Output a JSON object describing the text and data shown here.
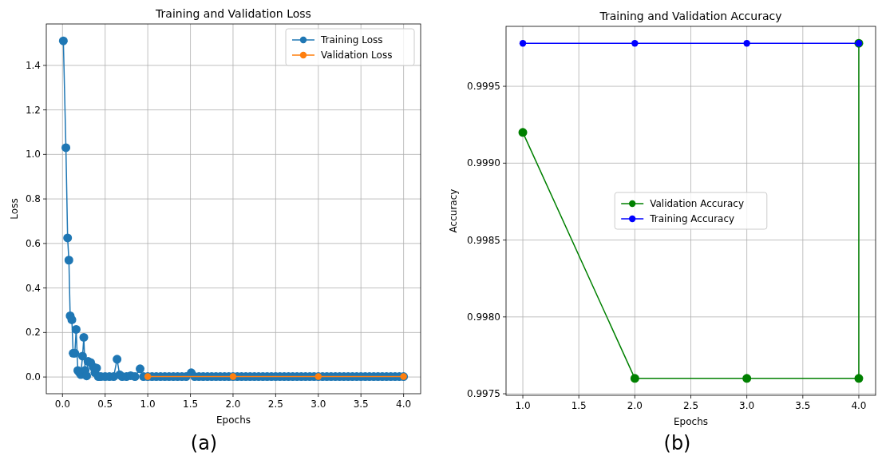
{
  "chart_data": [
    {
      "type": "line",
      "title": "Training and Validation Loss",
      "xlabel": "Epochs",
      "ylabel": "Loss",
      "annotations": [
        "(a)"
      ],
      "xlim": [
        -0.19,
        4.2
      ],
      "ylim": [
        -0.075,
        1.586
      ],
      "xticks": [
        {
          "value": 0,
          "label": "0.0"
        },
        {
          "value": 0.5,
          "label": "0.5"
        },
        {
          "value": 1,
          "label": "1.0"
        },
        {
          "value": 1.5,
          "label": "1.5"
        },
        {
          "value": 2,
          "label": "2.0"
        },
        {
          "value": 2.5,
          "label": "2.5"
        },
        {
          "value": 3,
          "label": "3.0"
        },
        {
          "value": 3.5,
          "label": "3.5"
        },
        {
          "value": 4,
          "label": "4.0"
        }
      ],
      "yticks": [
        {
          "value": 0,
          "label": "0.0"
        },
        {
          "value": 0.2,
          "label": "0.2"
        },
        {
          "value": 0.4,
          "label": "0.4"
        },
        {
          "value": 0.6,
          "label": "0.6"
        },
        {
          "value": 0.8,
          "label": "0.8"
        },
        {
          "value": 1,
          "label": "1.0"
        },
        {
          "value": 1.2,
          "label": "1.2"
        },
        {
          "value": 1.4,
          "label": "1.4"
        }
      ],
      "grid": true,
      "legend": "top right",
      "marker": "circle",
      "line_style": "solid",
      "series": [
        {
          "name": "Training Loss",
          "color": "#1f77b4",
          "x": [
            0.01,
            0.04,
            0.06,
            0.075,
            0.09,
            0.11,
            0.125,
            0.145,
            0.16,
            0.18,
            0.2,
            0.215,
            0.235,
            0.25,
            0.265,
            0.283,
            0.3,
            0.33,
            0.36,
            0.38,
            0.4,
            0.42,
            0.45,
            0.5,
            0.55,
            0.6,
            0.64,
            0.67,
            0.7,
            0.75,
            0.8,
            0.85,
            0.91,
            0.95,
            1.0,
            1.05,
            1.1,
            1.15,
            1.2,
            1.25,
            1.3,
            1.35,
            1.4,
            1.45,
            1.51,
            1.55,
            1.6,
            1.65,
            1.7,
            1.75,
            1.8,
            1.85,
            1.9,
            1.95,
            2.0,
            2.05,
            2.1,
            2.15,
            2.2,
            2.25,
            2.3,
            2.35,
            2.4,
            2.45,
            2.5,
            2.55,
            2.6,
            2.65,
            2.7,
            2.75,
            2.8,
            2.85,
            2.9,
            2.95,
            3.0,
            3.05,
            3.1,
            3.15,
            3.2,
            3.25,
            3.3,
            3.35,
            3.4,
            3.45,
            3.5,
            3.55,
            3.6,
            3.65,
            3.7,
            3.75,
            3.8,
            3.85,
            3.9,
            3.95,
            4.0
          ],
          "values": [
            1.51,
            1.03,
            0.625,
            0.525,
            0.275,
            0.257,
            0.107,
            0.107,
            0.214,
            0.029,
            0.02,
            0.011,
            0.094,
            0.178,
            0.03,
            0.005,
            0.07,
            0.065,
            0.046,
            0.02,
            0.04,
            0.002,
            0.002,
            0.002,
            0.002,
            0.002,
            0.08,
            0.01,
            0.002,
            0.002,
            0.006,
            0.002,
            0.037,
            0.002,
            0.002,
            0.002,
            0.002,
            0.002,
            0.002,
            0.002,
            0.002,
            0.002,
            0.002,
            0.002,
            0.019,
            0.002,
            0.002,
            0.002,
            0.002,
            0.002,
            0.002,
            0.002,
            0.002,
            0.002,
            0.002,
            0.002,
            0.002,
            0.002,
            0.002,
            0.002,
            0.002,
            0.002,
            0.002,
            0.002,
            0.002,
            0.002,
            0.002,
            0.002,
            0.002,
            0.002,
            0.002,
            0.002,
            0.002,
            0.002,
            0.002,
            0.002,
            0.002,
            0.002,
            0.002,
            0.002,
            0.002,
            0.002,
            0.002,
            0.002,
            0.002,
            0.002,
            0.002,
            0.002,
            0.002,
            0.002,
            0.002,
            0.002,
            0.002,
            0.002,
            0.002
          ]
        },
        {
          "name": "Validation Loss",
          "color": "#ff7f0e",
          "x": [
            1,
            2,
            3,
            4
          ],
          "values": [
            0.002,
            0.002,
            0.002,
            0.002
          ]
        }
      ]
    },
    {
      "type": "line",
      "title": "Training and Validation Accuracy",
      "xlabel": "Epochs",
      "ylabel": "Accuracy",
      "annotations": [
        "(b)"
      ],
      "xlim": [
        0.85,
        4.15
      ],
      "ylim": [
        0.99749,
        0.99989
      ],
      "xticks": [
        {
          "value": 1,
          "label": "1.0"
        },
        {
          "value": 1.5,
          "label": "1.5"
        },
        {
          "value": 2,
          "label": "2.0"
        },
        {
          "value": 2.5,
          "label": "2.5"
        },
        {
          "value": 3,
          "label": "3.0"
        },
        {
          "value": 3.5,
          "label": "3.5"
        },
        {
          "value": 4,
          "label": "4.0"
        }
      ],
      "yticks": [
        {
          "value": 0.9975,
          "label": "0.9975"
        },
        {
          "value": 0.998,
          "label": "0.9980"
        },
        {
          "value": 0.9985,
          "label": "0.9985"
        },
        {
          "value": 0.999,
          "label": "0.9990"
        },
        {
          "value": 0.9995,
          "label": "0.9995"
        }
      ],
      "grid": true,
      "legend": "center",
      "marker": "circle",
      "line_style": "solid",
      "series": [
        {
          "name": "Validation Accuracy",
          "color": "#008000",
          "x": [
            1,
            2,
            3,
            4,
            4
          ],
          "values": [
            0.9992,
            0.9976,
            0.9976,
            0.9976,
            0.99978
          ]
        },
        {
          "name": "Training Accuracy",
          "color": "#0000ff",
          "x": [
            1,
            2,
            3,
            4
          ],
          "values": [
            0.99978,
            0.99978,
            0.99978,
            0.99978
          ]
        }
      ]
    }
  ]
}
